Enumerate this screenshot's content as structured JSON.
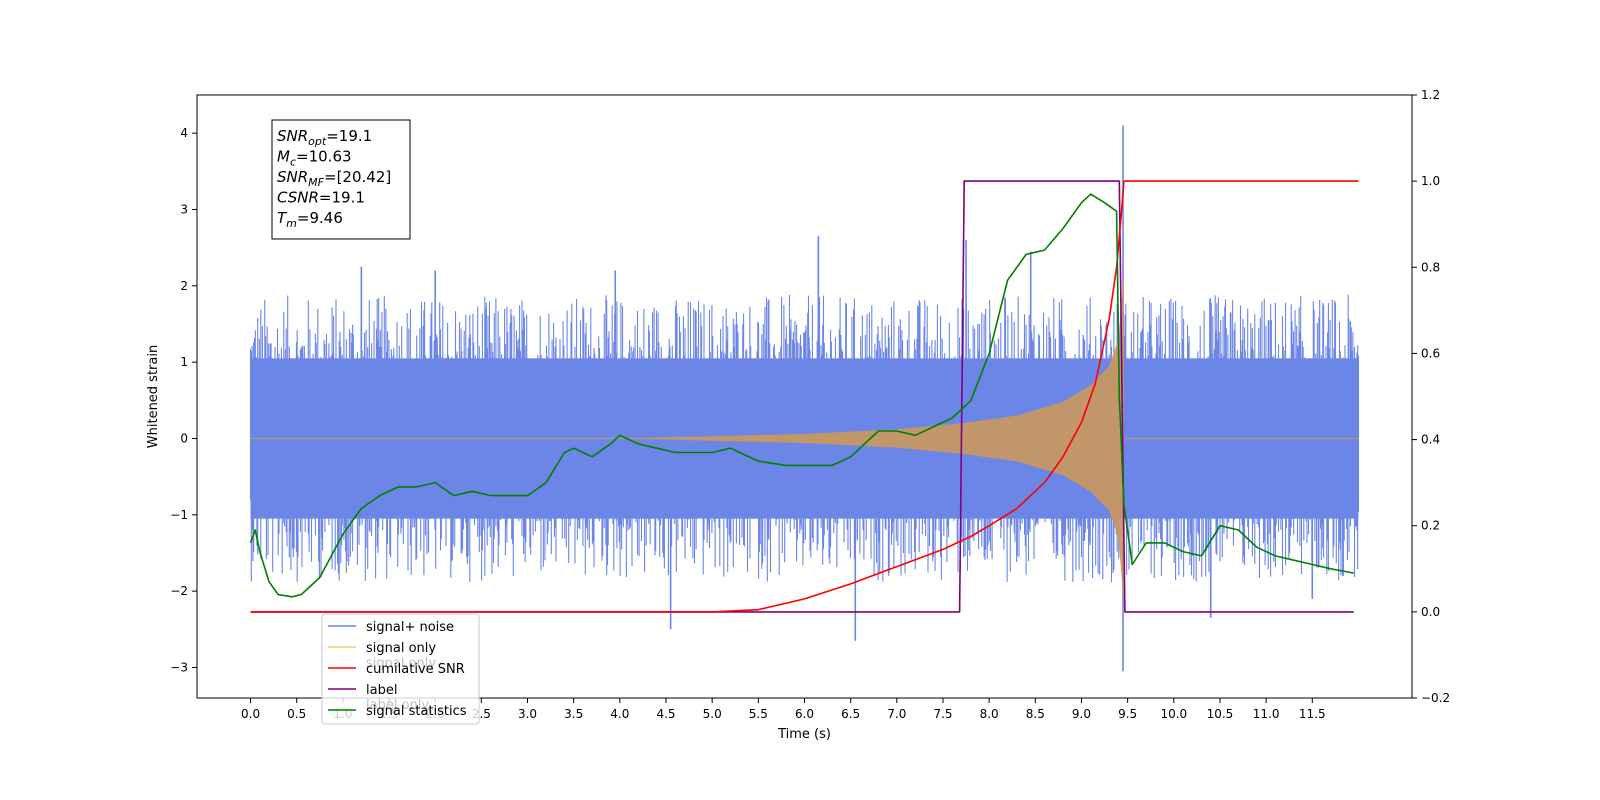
{
  "chart_data": {
    "type": "line",
    "xlabel": "Time (s)",
    "ylabel": "Whitened strain",
    "xlim": [
      -0.58,
      12.58
    ],
    "ylim_left": [
      -3.4,
      4.5
    ],
    "ylim_right": [
      -0.2,
      1.2
    ],
    "xticks": [
      "0.0",
      "0.5",
      "1.0",
      "1.5",
      "2.0",
      "2.5",
      "3.0",
      "3.5",
      "4.0",
      "4.5",
      "5.0",
      "5.5",
      "6.0",
      "6.5",
      "7.0",
      "7.5",
      "8.0",
      "8.5",
      "9.0",
      "9.5",
      "10.0",
      "10.5",
      "11.0",
      "11.5"
    ],
    "yticks_left": [
      "−3",
      "−2",
      "−1",
      "0",
      "1",
      "2",
      "3",
      "4"
    ],
    "yticks_right": [
      "−0.2",
      "0.0",
      "0.2",
      "0.4",
      "0.6",
      "0.8",
      "1.0",
      "1.2"
    ],
    "grid": false,
    "legend_position": "lower-left",
    "colors": {
      "signal_noise": "#6b86e6",
      "signal_only": "#c89860",
      "cumulative_snr": "#ff0000",
      "label": "#800080",
      "signal_statistics": "#008000"
    },
    "noise_band": {
      "x_range": [
        0.0,
        12.0
      ],
      "typical_low": -1.3,
      "typical_high": 1.3,
      "spikes": [
        [
          1.2,
          2.25
        ],
        [
          2.0,
          2.2
        ],
        [
          3.95,
          2.2
        ],
        [
          4.55,
          -2.5
        ],
        [
          6.15,
          2.65
        ],
        [
          6.55,
          -2.65
        ],
        [
          7.75,
          2.6
        ],
        [
          8.45,
          2.45
        ],
        [
          9.45,
          4.1
        ],
        [
          9.45,
          -3.05
        ],
        [
          10.4,
          -2.35
        ],
        [
          11.5,
          -2.1
        ]
      ]
    },
    "signal_only": {
      "start": 4.0,
      "merger": 9.46,
      "end": 12.0,
      "amplitude_points": [
        [
          4.0,
          0.0
        ],
        [
          6.0,
          0.06
        ],
        [
          7.0,
          0.12
        ],
        [
          7.7,
          0.2
        ],
        [
          8.3,
          0.3
        ],
        [
          8.8,
          0.48
        ],
        [
          9.1,
          0.7
        ],
        [
          9.3,
          0.95
        ],
        [
          9.4,
          1.3
        ],
        [
          9.46,
          2.2
        ],
        [
          9.47,
          0.0
        ]
      ]
    },
    "series": [
      {
        "name": "cumilative SNR",
        "axis": "right",
        "x": [
          0.0,
          4.4,
          5.0,
          5.5,
          6.0,
          6.5,
          7.0,
          7.5,
          7.8,
          8.0,
          8.3,
          8.6,
          8.8,
          9.0,
          9.15,
          9.3,
          9.38,
          9.43,
          9.46,
          10.0,
          11.5,
          12.0
        ],
        "values": [
          0.0,
          0.0,
          0.0,
          0.005,
          0.03,
          0.065,
          0.105,
          0.145,
          0.175,
          0.2,
          0.24,
          0.3,
          0.36,
          0.44,
          0.53,
          0.68,
          0.8,
          0.92,
          1.0,
          1.0,
          1.0,
          1.0
        ]
      },
      {
        "name": "label",
        "axis": "right",
        "x": [
          0.0,
          7.68,
          7.73,
          9.41,
          9.47,
          11.95
        ],
        "values": [
          0.0,
          0.0,
          1.0,
          1.0,
          0.0,
          0.0
        ]
      },
      {
        "name": "signal statistics",
        "axis": "right",
        "x": [
          0.0,
          0.05,
          0.1,
          0.2,
          0.3,
          0.45,
          0.55,
          0.65,
          0.75,
          0.85,
          1.0,
          1.2,
          1.4,
          1.6,
          1.8,
          2.0,
          2.2,
          2.4,
          2.6,
          2.8,
          3.0,
          3.2,
          3.4,
          3.5,
          3.7,
          3.9,
          4.0,
          4.2,
          4.4,
          4.6,
          4.8,
          5.0,
          5.2,
          5.5,
          5.8,
          6.0,
          6.3,
          6.5,
          6.8,
          7.0,
          7.2,
          7.4,
          7.6,
          7.8,
          8.0,
          8.2,
          8.4,
          8.6,
          8.8,
          9.0,
          9.1,
          9.25,
          9.38,
          9.41,
          9.46,
          9.55,
          9.7,
          9.9,
          10.1,
          10.3,
          10.5,
          10.7,
          10.9,
          11.1,
          11.3,
          11.5,
          11.7,
          11.95
        ],
        "values": [
          0.16,
          0.19,
          0.14,
          0.07,
          0.04,
          0.035,
          0.04,
          0.06,
          0.08,
          0.12,
          0.18,
          0.24,
          0.27,
          0.29,
          0.29,
          0.3,
          0.27,
          0.28,
          0.27,
          0.27,
          0.27,
          0.3,
          0.37,
          0.38,
          0.36,
          0.39,
          0.41,
          0.39,
          0.38,
          0.37,
          0.37,
          0.37,
          0.38,
          0.35,
          0.34,
          0.34,
          0.34,
          0.36,
          0.42,
          0.42,
          0.41,
          0.43,
          0.45,
          0.49,
          0.6,
          0.77,
          0.83,
          0.84,
          0.89,
          0.95,
          0.97,
          0.95,
          0.93,
          0.5,
          0.25,
          0.11,
          0.16,
          0.16,
          0.14,
          0.13,
          0.2,
          0.19,
          0.15,
          0.13,
          0.12,
          0.11,
          0.1,
          0.09
        ]
      }
    ],
    "legend": [
      "signal+ noise",
      "signal only",
      "cumilative SNR",
      "label",
      "signal statistics"
    ],
    "legend_ghost_text": [
      "signal only",
      "label only"
    ],
    "annotation": [
      {
        "main": "SNR",
        "sub": "opt",
        "rest": "=19.1"
      },
      {
        "main": "M",
        "sub": "c",
        "rest": "=10.63"
      },
      {
        "main": "SNR",
        "sub": "MF",
        "rest": "=[20.42]"
      },
      {
        "main": "CSNR",
        "sub": "",
        "rest": "=19.1"
      },
      {
        "main": "T",
        "sub": "m",
        "rest": "=9.46"
      }
    ]
  }
}
